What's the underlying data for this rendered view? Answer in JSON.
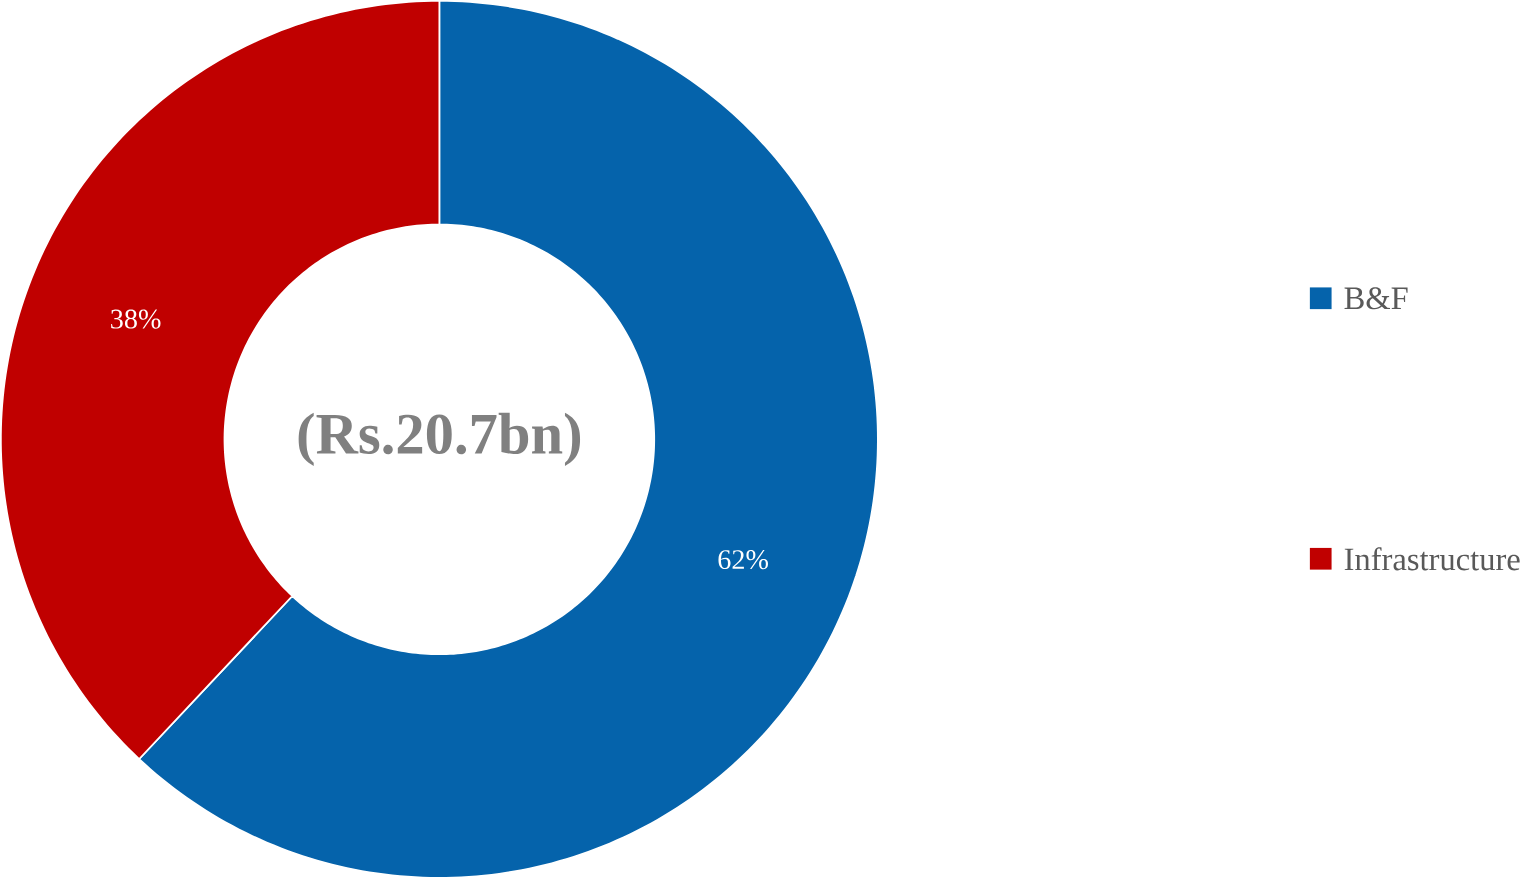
{
  "chart_data": {
    "type": "donut",
    "categories": [
      "B&F",
      "Infrastructure"
    ],
    "values": [
      62,
      38
    ],
    "colors": [
      "#0563ab",
      "#c00000"
    ],
    "value_labels": [
      "62%",
      "38%"
    ],
    "legend": "right",
    "annotations": [
      "(Rs.20.7bn)"
    ]
  }
}
